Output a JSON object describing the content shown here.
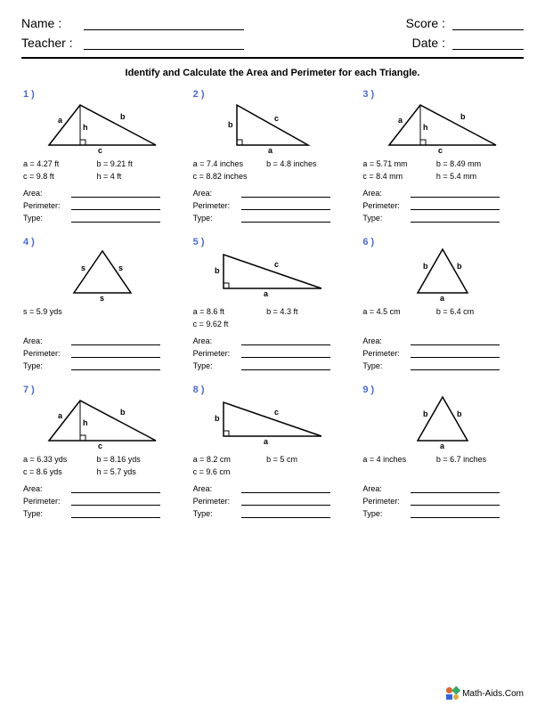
{
  "header": {
    "name_label": "Name :",
    "teacher_label": "Teacher :",
    "score_label": "Score :",
    "date_label": "Date :"
  },
  "instruction": "Identify and Calculate the Area and Perimeter for each Triangle.",
  "answer_labels": {
    "area": "Area:",
    "perimeter": "Perimeter:",
    "type": "Type:"
  },
  "footer": "Math-Aids.Com",
  "colors": {
    "problem_number": "#4a6bd6",
    "stroke": "#000000"
  },
  "problems": [
    {
      "n": "1 )",
      "shape": "scalene_altitude",
      "measures": [
        "a = 4.27 ft",
        "b = 9.21 ft",
        "c = 9.8 ft",
        "h = 4 ft"
      ],
      "labels": {
        "a": "a",
        "b": "b",
        "c": "c",
        "h": "h"
      }
    },
    {
      "n": "2 )",
      "shape": "right",
      "measures": [
        "a = 7.4 inches",
        "b = 4.8 inches",
        "c = 8.82 inches"
      ],
      "labels": {
        "a": "a",
        "b": "b",
        "c": "c"
      }
    },
    {
      "n": "3 )",
      "shape": "scalene_altitude",
      "measures": [
        "a = 5.71 mm",
        "b = 8.49 mm",
        "c = 8.4 mm",
        "h = 5.4 mm"
      ],
      "labels": {
        "a": "a",
        "b": "b",
        "c": "c",
        "h": "h"
      }
    },
    {
      "n": "4 )",
      "shape": "equilateral",
      "measures": [
        "s = 5.9 yds"
      ],
      "labels": {
        "s": "s"
      }
    },
    {
      "n": "5 )",
      "shape": "right_long",
      "measures": [
        "a = 8.6 ft",
        "b = 4.3 ft",
        "c = 9.62 ft"
      ],
      "labels": {
        "a": "a",
        "b": "b",
        "c": "c"
      }
    },
    {
      "n": "6 )",
      "shape": "isosceles",
      "measures": [
        "a = 4.5 cm",
        "b = 6.4 cm"
      ],
      "labels": {
        "a": "a",
        "b": "b"
      }
    },
    {
      "n": "7 )",
      "shape": "scalene_altitude",
      "measures": [
        "a = 6.33 yds",
        "b = 8.16 yds",
        "c = 8.6 yds",
        "h = 5.7 yds"
      ],
      "labels": {
        "a": "a",
        "b": "b",
        "c": "c",
        "h": "h"
      }
    },
    {
      "n": "8 )",
      "shape": "right_long",
      "measures": [
        "a = 8.2 cm",
        "b = 5 cm",
        "c = 9.6 cm"
      ],
      "labels": {
        "a": "a",
        "b": "b",
        "c": "c"
      }
    },
    {
      "n": "9 )",
      "shape": "isosceles",
      "measures": [
        "a = 4 inches",
        "b = 6.7 inches"
      ],
      "labels": {
        "a": "a",
        "b": "b"
      }
    }
  ]
}
